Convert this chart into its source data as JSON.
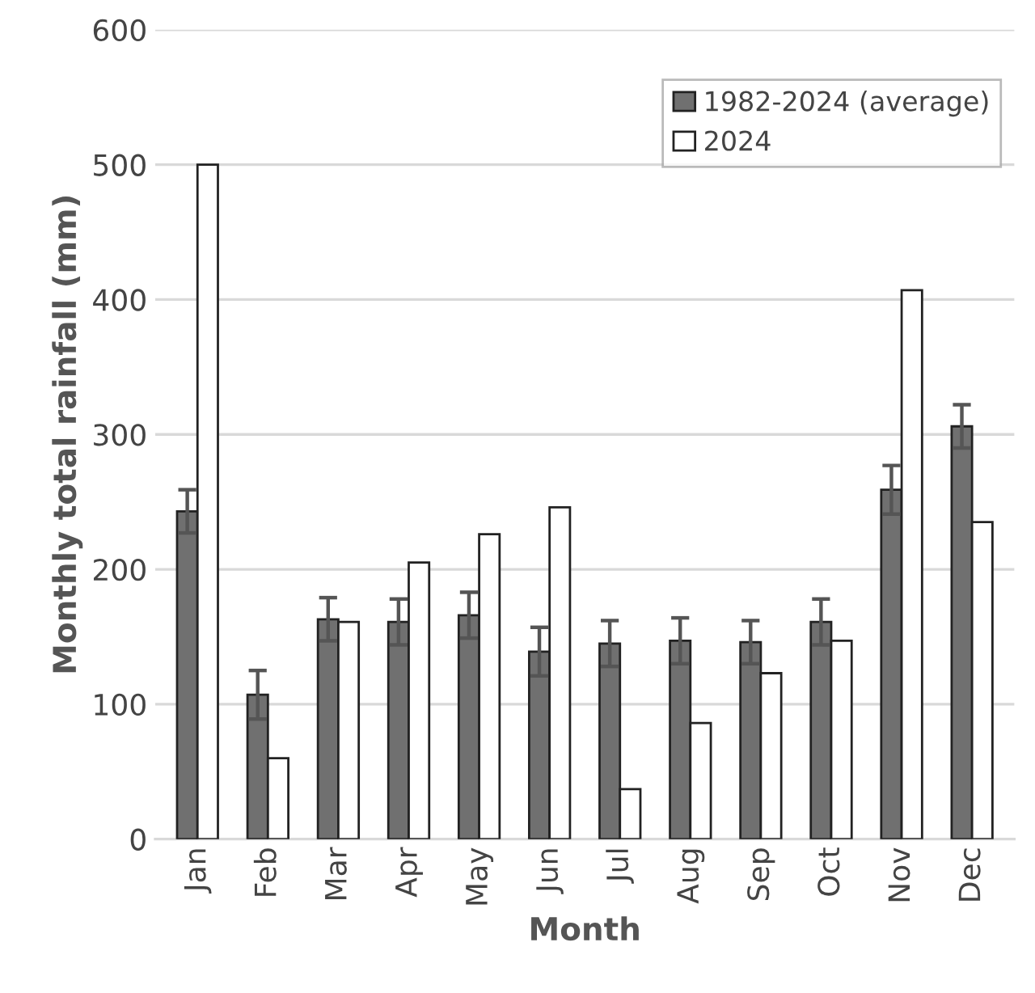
{
  "chart_data": {
    "type": "bar",
    "xlabel": "Month",
    "ylabel": "Monthly total rainfall (mm)",
    "categories": [
      "Jan",
      "Feb",
      "Mar",
      "Apr",
      "May",
      "Jun",
      "Jul",
      "Aug",
      "Sep",
      "Oct",
      "Nov",
      "Dec"
    ],
    "series": [
      {
        "name": "1982-2024 (average)",
        "color": "#707070",
        "values": [
          243,
          107,
          163,
          161,
          166,
          139,
          145,
          147,
          146,
          161,
          259,
          306
        ],
        "errors": [
          16,
          18,
          16,
          17,
          17,
          18,
          17,
          17,
          16,
          17,
          18,
          16
        ]
      },
      {
        "name": "2024",
        "color": "#ffffff",
        "values": [
          500,
          60,
          161,
          205,
          226,
          246,
          37,
          86,
          123,
          147,
          407,
          235
        ]
      }
    ],
    "ylim": [
      0,
      600
    ],
    "yticks": [
      0,
      100,
      200,
      300,
      400,
      500,
      600
    ],
    "grid": "y",
    "legend": "top right"
  }
}
